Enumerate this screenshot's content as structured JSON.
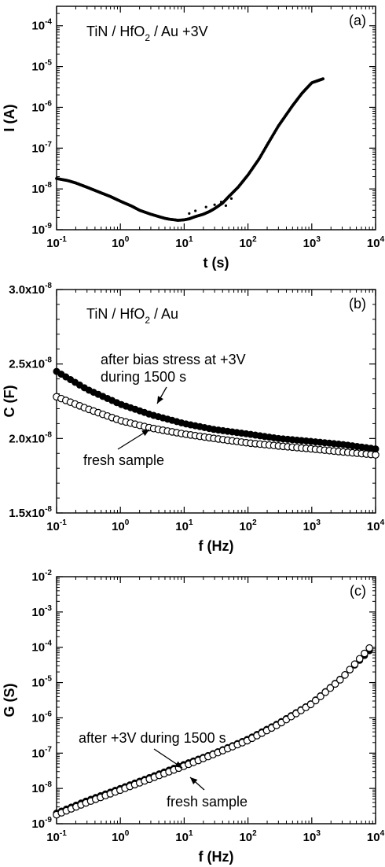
{
  "chart_data": [
    {
      "id": "a",
      "type": "scatter",
      "panel_label": "(a)",
      "annotation": {
        "main": "TiN / HfO",
        "sub": "2",
        "rest": " / Au +3V"
      },
      "xlabel": "t (s)",
      "ylabel": "I (A)",
      "xscale": "log",
      "yscale": "log",
      "xlim": [
        0.1,
        10000
      ],
      "ylim": [
        1e-09,
        0.0003
      ],
      "x_ticks": [
        {
          "base": "10",
          "exp": "-1"
        },
        {
          "base": "10",
          "exp": "0"
        },
        {
          "base": "10",
          "exp": "1"
        },
        {
          "base": "10",
          "exp": "2"
        },
        {
          "base": "10",
          "exp": "3"
        },
        {
          "base": "10",
          "exp": "4"
        }
      ],
      "y_ticks": [
        {
          "base": "10",
          "exp": "-9"
        },
        {
          "base": "10",
          "exp": "-8"
        },
        {
          "base": "10",
          "exp": "-7"
        },
        {
          "base": "10",
          "exp": "-6"
        },
        {
          "base": "10",
          "exp": "-5"
        },
        {
          "base": "10",
          "exp": "-4"
        }
      ],
      "series": [
        {
          "marker": "filled",
          "x": [
            0.1,
            0.15,
            0.2,
            0.3,
            0.5,
            0.7,
            1,
            1.5,
            2,
            3,
            4,
            5,
            6,
            7,
            8,
            10,
            12,
            15,
            20,
            25,
            30,
            40,
            50,
            70,
            100,
            150,
            200,
            300,
            500,
            700,
            1000,
            1500
          ],
          "y": [
            1.8e-08,
            1.6e-08,
            1.4e-08,
            1.1e-08,
            8e-09,
            6.5e-09,
            5e-09,
            3.8e-09,
            3e-09,
            2.4e-09,
            2.1e-09,
            1.9e-09,
            1.8e-09,
            1.75e-09,
            1.7e-09,
            1.75e-09,
            1.85e-09,
            2.1e-09,
            2.4e-09,
            2.8e-09,
            3.3e-09,
            4.5e-09,
            6.5e-09,
            1.1e-08,
            2.2e-08,
            5.5e-08,
            1.2e-07,
            3.5e-07,
            1.1e-06,
            2.2e-06,
            4e-06,
            5e-06
          ]
        }
      ]
    },
    {
      "id": "b",
      "type": "scatter",
      "panel_label": "(b)",
      "annotation": {
        "main": "TiN / HfO",
        "sub": "2",
        "rest": " / Au"
      },
      "xlabel": "f (Hz)",
      "ylabel": "C (F)",
      "xscale": "log",
      "yscale": "linear",
      "xlim": [
        0.1,
        10000
      ],
      "ylim": [
        1.5e-08,
        3e-08
      ],
      "x_ticks": [
        {
          "base": "10",
          "exp": "-1"
        },
        {
          "base": "10",
          "exp": "0"
        },
        {
          "base": "10",
          "exp": "1"
        },
        {
          "base": "10",
          "exp": "2"
        },
        {
          "base": "10",
          "exp": "3"
        },
        {
          "base": "10",
          "exp": "4"
        }
      ],
      "y_ticks": [
        {
          "base": "1.5x10",
          "exp": "-8"
        },
        {
          "base": "2.0x10",
          "exp": "-8"
        },
        {
          "base": "2.5x10",
          "exp": "-8"
        },
        {
          "base": "3.0x10",
          "exp": "-8"
        }
      ],
      "notes": [
        {
          "lines": [
            "after bias stress at +3V",
            "during 1500 s"
          ]
        },
        {
          "lines": [
            "fresh sample"
          ]
        }
      ],
      "series": [
        {
          "marker": "filled",
          "x": [
            0.1,
            0.3,
            1,
            3,
            10,
            30,
            100,
            300,
            1000,
            3000,
            10000
          ],
          "y": [
            2.45e-08,
            2.33e-08,
            2.23e-08,
            2.16e-08,
            2.1e-08,
            2.06e-08,
            2.03e-08,
            2e-08,
            1.98e-08,
            1.96e-08,
            1.93e-08
          ]
        },
        {
          "marker": "open",
          "x": [
            0.1,
            0.3,
            1,
            3,
            10,
            30,
            100,
            300,
            1000,
            3000,
            10000
          ],
          "y": [
            2.28e-08,
            2.2e-08,
            2.12e-08,
            2.07e-08,
            2.03e-08,
            2e-08,
            1.97e-08,
            1.95e-08,
            1.93e-08,
            1.91e-08,
            1.89e-08
          ]
        }
      ]
    },
    {
      "id": "c",
      "type": "scatter",
      "panel_label": "(c)",
      "xlabel": "f (Hz)",
      "ylabel": "G (S)",
      "xscale": "log",
      "yscale": "log",
      "xlim": [
        0.1,
        10000
      ],
      "ylim": [
        1e-09,
        0.01
      ],
      "x_ticks": [
        {
          "base": "10",
          "exp": "-1"
        },
        {
          "base": "10",
          "exp": "0"
        },
        {
          "base": "10",
          "exp": "1"
        },
        {
          "base": "10",
          "exp": "2"
        },
        {
          "base": "10",
          "exp": "3"
        },
        {
          "base": "10",
          "exp": "4"
        }
      ],
      "y_ticks": [
        {
          "base": "10",
          "exp": "-9"
        },
        {
          "base": "10",
          "exp": "-8"
        },
        {
          "base": "10",
          "exp": "-7"
        },
        {
          "base": "10",
          "exp": "-6"
        },
        {
          "base": "10",
          "exp": "-5"
        },
        {
          "base": "10",
          "exp": "-4"
        },
        {
          "base": "10",
          "exp": "-3"
        },
        {
          "base": "10",
          "exp": "-2"
        }
      ],
      "notes": [
        {
          "lines": [
            "after +3V during 1500 s"
          ]
        },
        {
          "lines": [
            "fresh sample"
          ]
        }
      ],
      "series": [
        {
          "marker": "filled",
          "x": [
            0.1,
            0.3,
            1,
            3,
            10,
            30,
            100,
            300,
            1000,
            3000,
            8000
          ],
          "y": [
            2e-09,
            4.5e-09,
            1e-08,
            2.1e-08,
            4.8e-08,
            1e-07,
            2.5e-07,
            7e-07,
            2.6e-06,
            1.4e-05,
            8e-05
          ]
        },
        {
          "marker": "open",
          "x": [
            0.1,
            0.3,
            1,
            3,
            10,
            30,
            100,
            300,
            1000,
            3000,
            8000
          ],
          "y": [
            1.8e-09,
            4e-09,
            9e-09,
            1.9e-08,
            4.3e-08,
            9.5e-08,
            2.3e-07,
            6.5e-07,
            2.5e-06,
            1.35e-05,
            9.5e-05
          ]
        }
      ]
    }
  ]
}
